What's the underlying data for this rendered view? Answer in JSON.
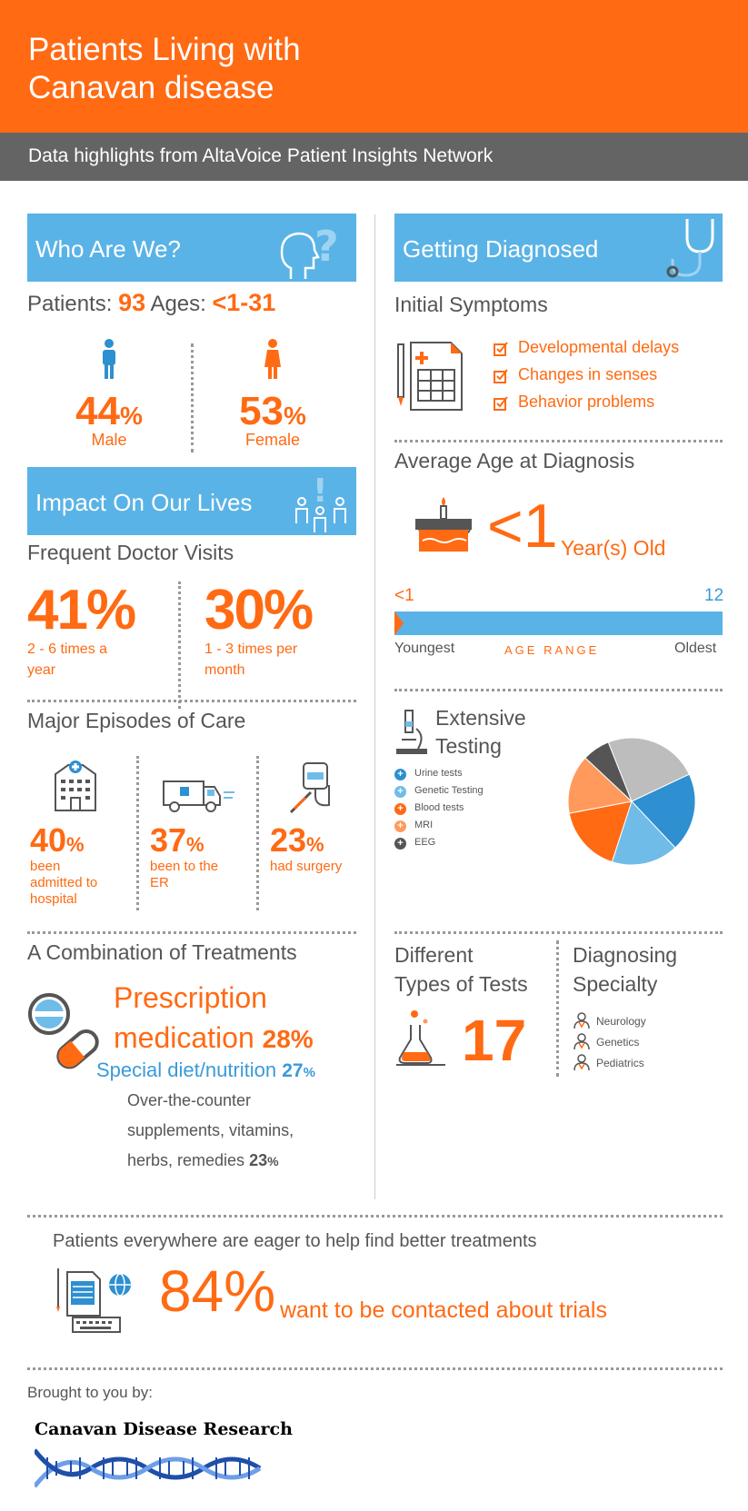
{
  "header": {
    "title_line1": "Patients Living with",
    "title_line2": "Canavan disease",
    "subtitle": "Data highlights from AltaVoice Patient Insights Network"
  },
  "who": {
    "band": "Who Are We?",
    "patients_label": "Patients:",
    "patients_value": "93",
    "ages_label": "Ages:",
    "ages_value": "<1-31",
    "male_pct": "44",
    "male_label": "Male",
    "female_pct": "53",
    "female_label": "Female",
    "pct_sign": "%"
  },
  "impact": {
    "band": "Impact On Our Lives",
    "visits_title": "Frequent Doctor Visits",
    "visit1_pct": "41%",
    "visit1_text_line1": "2 - 6 times a",
    "visit1_text_line2": "year",
    "visit2_pct": "30%",
    "visit2_text_line1": "1 - 3 times per",
    "visit2_text_line2": "month"
  },
  "episodes": {
    "title": "Major Episodes of Care",
    "hospital_pct": "40",
    "hospital_line1": "been",
    "hospital_line2": "admitted to",
    "hospital_line3": "hospital",
    "er_pct": "37",
    "er_line1": "been to the",
    "er_line2": "ER",
    "surgery_pct": "23",
    "surgery_line1": "had surgery",
    "pct_sign": "%"
  },
  "treatments": {
    "title": "A Combination of Treatments",
    "rx_line1": "Prescription",
    "rx_line2": "medication",
    "rx_pct": "28%",
    "diet_label": "Special diet/nutrition",
    "diet_pct": "27",
    "otc_line1": "Over-the-counter",
    "otc_line2": "supplements, vitamins,",
    "otc_line3": "herbs, remedies",
    "otc_pct": "23",
    "pct_sign": "%"
  },
  "diagnosed": {
    "band": "Getting Diagnosed",
    "symptoms_title": "Initial Symptoms",
    "symptoms": [
      "Developmental delays",
      "Changes in senses",
      "Behavior problems"
    ],
    "avg_age_title": "Average Age at Diagnosis",
    "avg_age_value": "<1",
    "avg_age_unit": "Year(s) Old",
    "range_min": "<1",
    "range_max": "12",
    "range_left_label": "Youngest",
    "range_center_label": "AGE RANGE",
    "range_right_label": "Oldest",
    "range_marker_fraction": 0.0
  },
  "testing": {
    "title_line1": "Extensive",
    "title_line2": "Testing",
    "legend": [
      {
        "label": "Urine tests",
        "color": "#2e8fd1"
      },
      {
        "label": "Genetic Testing",
        "color": "#6fbce9"
      },
      {
        "label": "Blood tests",
        "color": "#ff6a13"
      },
      {
        "label": "MRI",
        "color": "#ff9a5c"
      },
      {
        "label": "EEG",
        "color": "#555555"
      }
    ]
  },
  "chart_data": {
    "type": "pie",
    "slices": [
      {
        "label": "",
        "color": "#bdbdbd",
        "value": 24
      },
      {
        "label": "Urine tests",
        "color": "#2e8fd1",
        "value": 20
      },
      {
        "label": "Genetic Testing",
        "color": "#6fbce9",
        "value": 17
      },
      {
        "label": "Blood tests",
        "color": "#ff6a13",
        "value": 17
      },
      {
        "label": "MRI",
        "color": "#ff9a5c",
        "value": 15
      },
      {
        "label": "EEG",
        "color": "#555555",
        "value": 7
      }
    ]
  },
  "tests": {
    "title_line1": "Different",
    "title_line2": "Types of Tests",
    "value": "17"
  },
  "specialty": {
    "title_line1": "Diagnosing",
    "title_line2": "Specialty",
    "items": [
      "Neurology",
      "Genetics",
      "Pediatrics"
    ]
  },
  "trials": {
    "headline": "Patients everywhere are eager to help find better treatments",
    "pct": "84%",
    "text": "want to be contacted about trials"
  },
  "footer": {
    "brought": "Brought to you by:",
    "logo_text": "Canavan Disease Research"
  }
}
